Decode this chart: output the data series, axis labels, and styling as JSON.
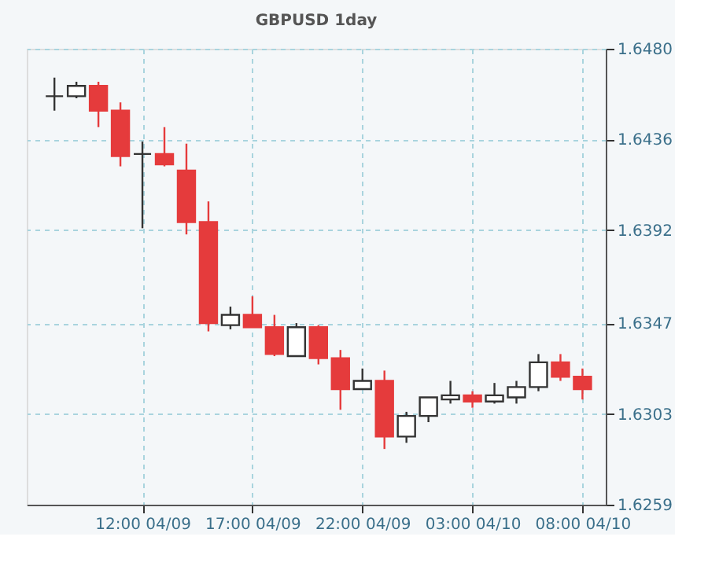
{
  "chart_data": {
    "type": "candlestick",
    "title": "GBPUSD 1day",
    "categories": [
      null,
      null,
      null,
      null,
      "12:00 04/09",
      null,
      null,
      null,
      null,
      "17:00 04/09",
      null,
      null,
      null,
      null,
      "22:00 04/09",
      null,
      null,
      null,
      null,
      "03:00 04/10",
      null,
      null,
      null,
      null,
      "08:00 04/10"
    ],
    "ohlc": [
      [
        1.6457,
        1.6466,
        1.645,
        1.6457
      ],
      [
        1.6457,
        1.6464,
        1.6456,
        1.6462
      ],
      [
        1.6462,
        1.6464,
        1.6442,
        1.645
      ],
      [
        1.645,
        1.6454,
        1.6423,
        1.6428
      ],
      [
        1.6429,
        1.6435,
        1.6393,
        1.6429
      ],
      [
        1.6429,
        1.6442,
        1.6423,
        1.6424
      ],
      [
        1.6421,
        1.6434,
        1.639,
        1.6396
      ],
      [
        1.6396,
        1.6406,
        1.6343,
        1.6347
      ],
      [
        1.6346,
        1.6355,
        1.6344,
        1.6351
      ],
      [
        1.6351,
        1.636,
        1.6345,
        1.6345
      ],
      [
        1.6345,
        1.6351,
        1.6331,
        1.6332
      ],
      [
        1.6331,
        1.6347,
        1.6331,
        1.6345
      ],
      [
        1.6345,
        1.6346,
        1.6327,
        1.633
      ],
      [
        1.633,
        1.6334,
        1.6305,
        1.6315
      ],
      [
        1.6315,
        1.6325,
        1.6315,
        1.6319
      ],
      [
        1.6319,
        1.6324,
        1.6286,
        1.6292
      ],
      [
        1.6292,
        1.6304,
        1.6289,
        1.6302
      ],
      [
        1.6302,
        1.6311,
        1.6299,
        1.6311
      ],
      [
        1.631,
        1.6319,
        1.6308,
        1.6312
      ],
      [
        1.6312,
        1.6314,
        1.6306,
        1.6309
      ],
      [
        1.6309,
        1.6318,
        1.6308,
        1.6312
      ],
      [
        1.6311,
        1.6319,
        1.6308,
        1.6316
      ],
      [
        1.6316,
        1.6332,
        1.6314,
        1.6328
      ],
      [
        1.6328,
        1.6332,
        1.6319,
        1.6321
      ],
      [
        1.6321,
        1.6325,
        1.631,
        1.6315
      ]
    ],
    "colors": [
      "#333333",
      "#ffffff",
      "#e53b3c",
      "#e53b3c",
      "#333333",
      "#e53b3c",
      "#e53b3c",
      "#e53b3c",
      "#ffffff",
      "#e53b3c",
      "#e53b3c",
      "#ffffff",
      "#e53b3c",
      "#e53b3c",
      "#ffffff",
      "#e53b3c",
      "#ffffff",
      "#ffffff",
      "#ffffff",
      "#e53b3c",
      "#ffffff",
      "#ffffff",
      "#ffffff",
      "#e53b3c",
      "#e53b3c"
    ],
    "ylim": [
      1.6259,
      1.648
    ],
    "yticks": [
      {
        "value": 1.648,
        "label": "1.6480"
      },
      1.6436,
      1.6392,
      1.6347,
      1.6303,
      1.6259
    ],
    "grid": true
  }
}
